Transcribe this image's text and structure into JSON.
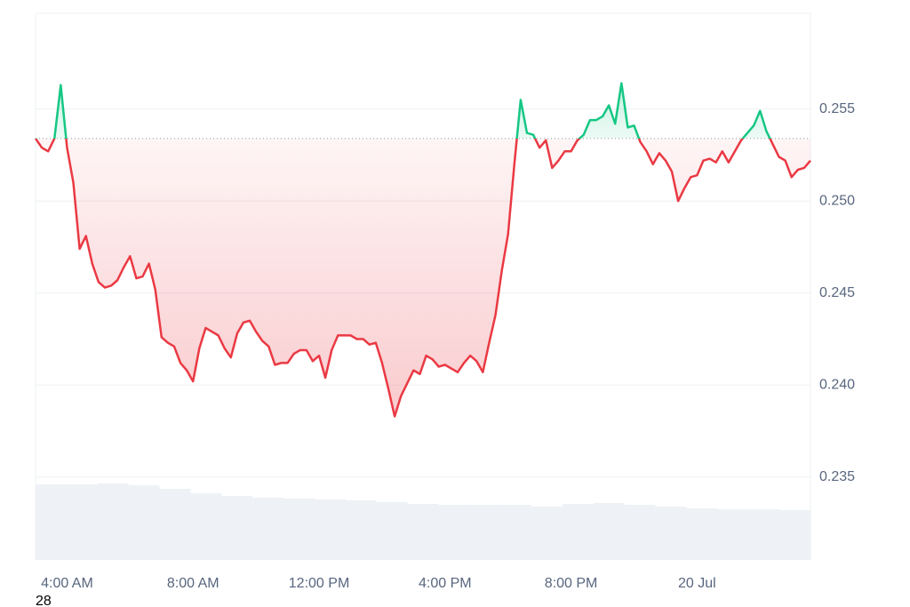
{
  "chart_data": {
    "type": "baseline-line",
    "x": [
      3,
      3.2,
      3.4,
      3.6,
      3.8,
      4,
      4.2,
      4.4,
      4.6,
      4.8,
      5,
      5.2,
      5.4,
      5.6,
      5.8,
      6,
      6.2,
      6.4,
      6.6,
      6.8,
      7,
      7.2,
      7.4,
      7.6,
      7.8,
      8,
      8.2,
      8.4,
      8.6,
      8.8,
      9,
      9.2,
      9.4,
      9.6,
      9.8,
      10,
      10.2,
      10.4,
      10.6,
      10.8,
      11,
      11.2,
      11.4,
      11.6,
      11.8,
      12,
      12.2,
      12.4,
      12.6,
      12.8,
      13,
      13.2,
      13.4,
      13.6,
      13.8,
      14,
      14.2,
      14.4,
      14.6,
      14.8,
      15,
      15.2,
      15.4,
      15.6,
      15.8,
      16,
      16.2,
      16.4,
      16.6,
      16.8,
      17,
      17.2,
      17.4,
      17.6,
      17.8,
      18,
      18.2,
      18.4,
      18.6,
      18.8,
      19,
      19.2,
      19.4,
      19.6,
      19.8,
      20,
      20.2,
      20.4,
      20.6,
      20.8,
      21,
      21.2,
      21.4,
      21.6,
      21.8,
      22,
      22.2,
      22.4,
      22.6,
      22.8,
      23,
      23.2,
      23.4,
      23.6,
      23.8,
      24,
      24.2,
      24.4,
      24.6,
      24.8,
      25,
      25.2,
      25.4,
      25.6,
      25.8,
      26,
      26.2,
      26.4,
      26.6,
      26.8,
      27,
      27.2,
      27.4,
      27.6
    ],
    "series": [
      {
        "values": [
          0.2534,
          0.2529,
          0.2527,
          0.2534,
          0.2563,
          0.2529,
          0.251,
          0.2474,
          0.2481,
          0.2466,
          0.2456,
          0.2453,
          0.2454,
          0.2457,
          0.2464,
          0.247,
          0.2458,
          0.2459,
          0.2466,
          0.2452,
          0.2426,
          0.2423,
          0.2421,
          0.2412,
          0.2408,
          0.2402,
          0.242,
          0.2431,
          0.2429,
          0.2427,
          0.242,
          0.2415,
          0.2428,
          0.2434,
          0.2435,
          0.2429,
          0.2424,
          0.2421,
          0.2411,
          0.2412,
          0.2412,
          0.2417,
          0.2419,
          0.2419,
          0.2413,
          0.2416,
          0.2404,
          0.2419,
          0.2427,
          0.2427,
          0.2427,
          0.2425,
          0.2425,
          0.2422,
          0.2423,
          0.2412,
          0.2398,
          0.2383,
          0.2394,
          0.2401,
          0.2408,
          0.2406,
          0.2416,
          0.2414,
          0.241,
          0.2411,
          0.2409,
          0.2407,
          0.2412,
          0.2416,
          0.2413,
          0.2407,
          0.2423,
          0.2438,
          0.2462,
          0.2482,
          0.252,
          0.2555,
          0.2537,
          0.2536,
          0.2529,
          0.2533,
          0.2518,
          0.2522,
          0.2527,
          0.2527,
          0.2533,
          0.2536,
          0.2544,
          0.2544,
          0.2546,
          0.2552,
          0.2542,
          0.2564,
          0.254,
          0.2541,
          0.2532,
          0.2527,
          0.252,
          0.2526,
          0.2522,
          0.2516,
          0.25,
          0.2507,
          0.2513,
          0.2514,
          0.2522,
          0.2523,
          0.2521,
          0.2527,
          0.2521,
          0.2527,
          0.2533,
          0.2537,
          0.2541,
          0.2549,
          0.2538,
          0.2531,
          0.2524,
          0.2522,
          0.2513,
          0.2517,
          0.2518,
          0.2522
        ]
      }
    ],
    "baseline": 0.2534,
    "up_color": "#16c784",
    "down_color": "#ea3943",
    "xlim": [
      3,
      27.6
    ],
    "xticks": [
      {
        "value": 4,
        "label": "4:00 AM"
      },
      {
        "value": 8,
        "label": "8:00 AM"
      },
      {
        "value": 12,
        "label": "12:00 PM"
      },
      {
        "value": 16,
        "label": "4:00 PM"
      },
      {
        "value": 20,
        "label": "8:00 PM"
      },
      {
        "value": 24,
        "label": "20 Jul"
      }
    ],
    "ylim": [
      0.2305,
      0.2602
    ],
    "yticks": [
      0.235,
      {
        "value": 0.24,
        "label": "0.240"
      },
      0.245,
      {
        "value": 0.25,
        "label": "0.250"
      },
      0.255
    ],
    "grid": true,
    "volume": {
      "color": "#eef1f5",
      "values": [
        85,
        85,
        86,
        84,
        80,
        75,
        72,
        70,
        69,
        68,
        67,
        65,
        63,
        62,
        62,
        62,
        60,
        63,
        64,
        62,
        60,
        58,
        57,
        57,
        56
      ]
    },
    "annotation": "28"
  }
}
